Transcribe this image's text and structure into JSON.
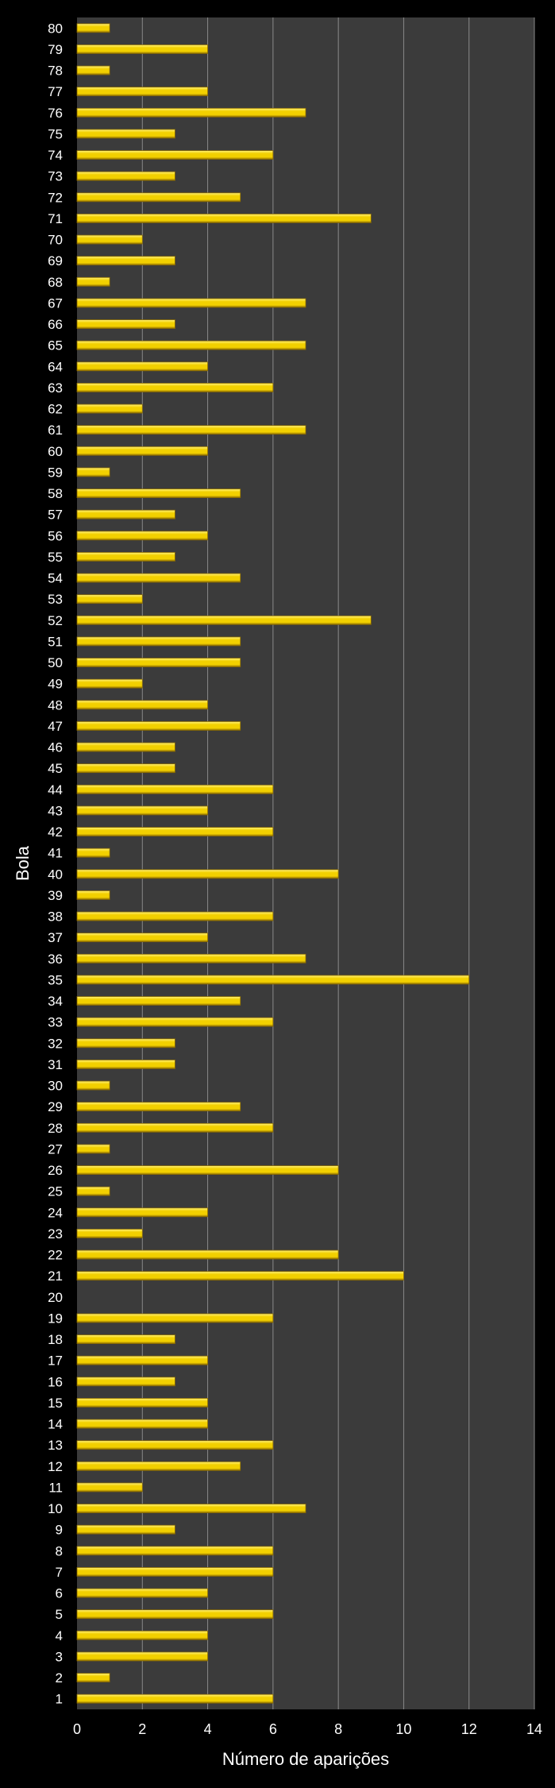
{
  "chart_data": {
    "type": "bar",
    "orientation": "horizontal",
    "title": "",
    "xlabel": "Número de aparições",
    "ylabel": "Bola",
    "xlim": [
      0,
      14
    ],
    "x_ticks": [
      0,
      2,
      4,
      6,
      8,
      10,
      12,
      14
    ],
    "grid": true,
    "legend": "none",
    "categories": [
      "1",
      "2",
      "3",
      "4",
      "5",
      "6",
      "7",
      "8",
      "9",
      "10",
      "11",
      "12",
      "13",
      "14",
      "15",
      "16",
      "17",
      "18",
      "19",
      "20",
      "21",
      "22",
      "23",
      "24",
      "25",
      "26",
      "27",
      "28",
      "29",
      "30",
      "31",
      "32",
      "33",
      "34",
      "35",
      "36",
      "37",
      "38",
      "39",
      "40",
      "41",
      "42",
      "43",
      "44",
      "45",
      "46",
      "47",
      "48",
      "49",
      "50",
      "51",
      "52",
      "53",
      "54",
      "55",
      "56",
      "57",
      "58",
      "59",
      "60",
      "61",
      "62",
      "63",
      "64",
      "65",
      "66",
      "67",
      "68",
      "69",
      "70",
      "71",
      "72",
      "73",
      "74",
      "75",
      "76",
      "77",
      "78",
      "79",
      "80"
    ],
    "values": [
      6,
      1,
      4,
      4,
      6,
      4,
      6,
      6,
      3,
      7,
      2,
      5,
      6,
      4,
      4,
      3,
      4,
      3,
      6,
      0,
      10,
      8,
      2,
      4,
      1,
      8,
      1,
      6,
      5,
      1,
      3,
      3,
      6,
      5,
      12,
      7,
      4,
      6,
      1,
      8,
      1,
      6,
      4,
      6,
      3,
      3,
      5,
      4,
      2,
      5,
      5,
      9,
      2,
      5,
      3,
      4,
      3,
      5,
      1,
      4,
      7,
      2,
      6,
      4,
      7,
      3,
      7,
      1,
      3,
      2,
      9,
      5,
      3,
      6,
      3,
      7,
      4,
      1,
      4,
      1
    ]
  },
  "colors": {
    "background": "#000000",
    "plot_background": "#3b3b3b",
    "grid": "#8a8a8a",
    "bar_light": "#fff27a",
    "bar_main": "#f2d000",
    "bar_dark": "#8a6a00",
    "text": "#ffffff"
  }
}
